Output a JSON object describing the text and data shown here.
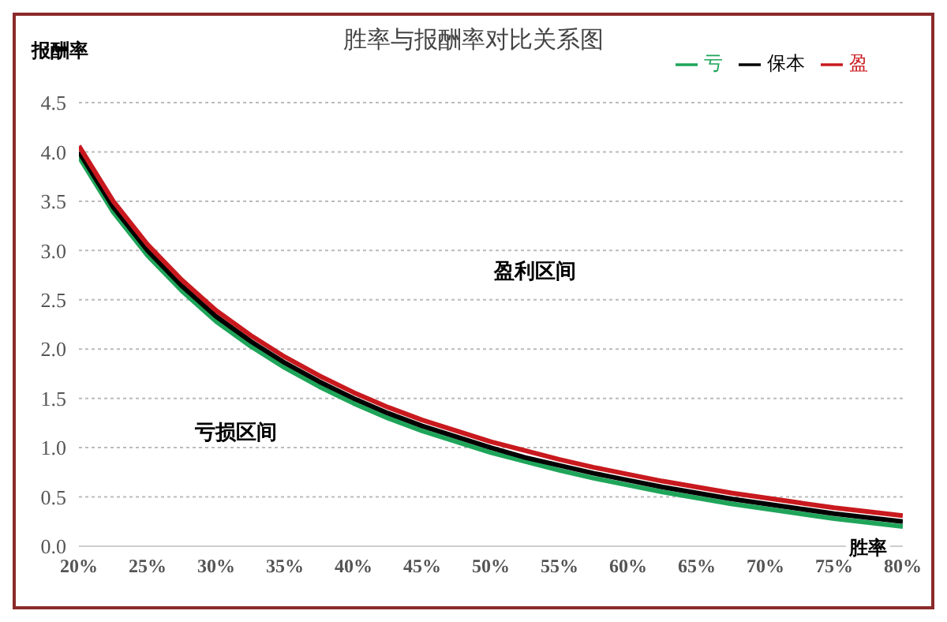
{
  "chart_data": {
    "type": "line",
    "title": "胜率与报酬率对比关系图",
    "xlabel": "胜率",
    "ylabel": "报酬率",
    "annotations": [
      "盈利区间",
      "亏损区间"
    ],
    "x": [
      20,
      22.5,
      25,
      27.5,
      30,
      32.5,
      35,
      37.5,
      40,
      42.5,
      45,
      47.5,
      50,
      52.5,
      55,
      57.5,
      60,
      62.5,
      65,
      67.5,
      70,
      72.5,
      75,
      77.5,
      80
    ],
    "series": [
      {
        "name": "亏",
        "color": "#1fa55a",
        "values": [
          3.95,
          3.39,
          2.95,
          2.59,
          2.28,
          2.03,
          1.81,
          1.62,
          1.45,
          1.3,
          1.17,
          1.06,
          0.95,
          0.86,
          0.77,
          0.69,
          0.62,
          0.55,
          0.49,
          0.43,
          0.38,
          0.33,
          0.28,
          0.24,
          0.2
        ]
      },
      {
        "name": "保本",
        "color": "#000000",
        "values": [
          4.0,
          3.44,
          3.0,
          2.64,
          2.33,
          2.08,
          1.86,
          1.67,
          1.5,
          1.35,
          1.22,
          1.11,
          1.0,
          0.9,
          0.82,
          0.74,
          0.67,
          0.6,
          0.54,
          0.48,
          0.43,
          0.38,
          0.33,
          0.29,
          0.25
        ]
      },
      {
        "name": "盈",
        "color": "#c8191e",
        "values": [
          4.06,
          3.5,
          3.06,
          2.7,
          2.39,
          2.14,
          1.92,
          1.73,
          1.56,
          1.41,
          1.28,
          1.17,
          1.06,
          0.97,
          0.88,
          0.8,
          0.73,
          0.66,
          0.6,
          0.54,
          0.49,
          0.44,
          0.39,
          0.35,
          0.31
        ]
      }
    ],
    "xlim": [
      20,
      80
    ],
    "xticks": [
      {
        "value": 20,
        "label": "20%"
      },
      {
        "value": 25,
        "label": "25%"
      },
      {
        "value": 30,
        "label": "30%"
      },
      {
        "value": 35,
        "label": "35%"
      },
      {
        "value": 40,
        "label": "40%"
      },
      {
        "value": 45,
        "label": "45%"
      },
      {
        "value": 50,
        "label": "50%"
      },
      {
        "value": 55,
        "label": "55%"
      },
      {
        "value": 60,
        "label": "60%"
      },
      {
        "value": 65,
        "label": "65%"
      },
      {
        "value": 70,
        "label": "70%"
      },
      {
        "value": 75,
        "label": "75%"
      },
      {
        "value": 80,
        "label": "80%"
      }
    ],
    "ylim": [
      0,
      4.5
    ],
    "yticks": [
      {
        "value": 0,
        "label": "0.0"
      },
      {
        "value": 0.5,
        "label": "0.5"
      },
      {
        "value": 1,
        "label": "1.0"
      },
      {
        "value": 1.5,
        "label": "1.5"
      },
      {
        "value": 2,
        "label": "2.0"
      },
      {
        "value": 2.5,
        "label": "2.5"
      },
      {
        "value": 3,
        "label": "3.0"
      },
      {
        "value": 3.5,
        "label": "3.5"
      },
      {
        "value": 4,
        "label": "4.0"
      },
      {
        "value": 4.5,
        "label": "4.5"
      }
    ],
    "grid": "y",
    "legend": "top right",
    "marker": "none",
    "line_style": "solid"
  }
}
